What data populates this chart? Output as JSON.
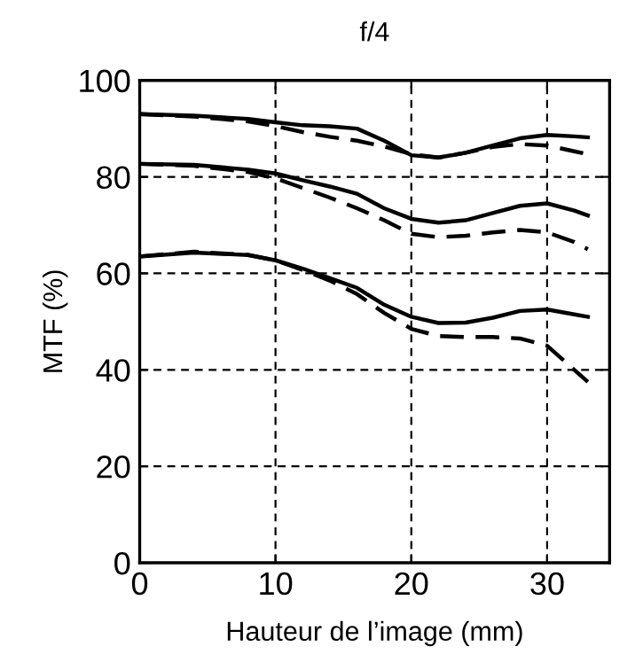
{
  "chart_data": {
    "type": "line",
    "title": "f/4",
    "xlabel": "Hauteur de l’image (mm)",
    "ylabel": "MTF (%)",
    "x": [
      0,
      4,
      8,
      10,
      12,
      14,
      16,
      18,
      20,
      22,
      24,
      26,
      28,
      30,
      32,
      33
    ],
    "series": [
      {
        "color": "#000000",
        "line_style": "solid",
        "values": [
          93,
          92.7,
          92,
          91.3,
          90.7,
          90.5,
          90,
          87.5,
          84.5,
          84,
          85,
          86.5,
          88,
          88.7,
          88.4,
          88.2
        ]
      },
      {
        "color": "#000000",
        "line_style": "dashed",
        "values": [
          93,
          92.5,
          91.5,
          90.5,
          89.3,
          88.3,
          87.5,
          86.3,
          84.7,
          84,
          85,
          86.2,
          86.8,
          86.5,
          85.3,
          84.7
        ]
      },
      {
        "color": "#000000",
        "line_style": "solid",
        "values": [
          82.7,
          82.5,
          81.5,
          80.7,
          79.3,
          78,
          76.5,
          73.5,
          71.3,
          70.5,
          71,
          72.5,
          74,
          74.5,
          73,
          72
        ]
      },
      {
        "color": "#000000",
        "line_style": "dashed",
        "values": [
          82.7,
          82.3,
          81,
          79.7,
          77.7,
          75.7,
          73.5,
          71,
          68.2,
          67.5,
          67.8,
          68.5,
          69,
          68.5,
          66.5,
          65
        ]
      },
      {
        "color": "#000000",
        "line_style": "solid",
        "values": [
          63.5,
          64.3,
          63.8,
          62.7,
          61,
          59,
          57,
          53.5,
          51,
          49.7,
          49.8,
          50.8,
          52.2,
          52.5,
          51.5,
          51
        ]
      },
      {
        "color": "#000000",
        "line_style": "dashed",
        "values": [
          63.5,
          64.5,
          63.8,
          62.7,
          60.7,
          58.5,
          55.7,
          51.8,
          48.5,
          47,
          46.8,
          46.8,
          46.5,
          45,
          40,
          37.5
        ]
      }
    ],
    "xlim": [
      0,
      34.6
    ],
    "xticks": [
      0,
      10,
      20,
      30
    ],
    "ylim": [
      0,
      100
    ],
    "yticks": [
      0,
      20,
      40,
      60,
      80,
      100
    ],
    "grid": true,
    "marker": "none",
    "legend": false
  }
}
